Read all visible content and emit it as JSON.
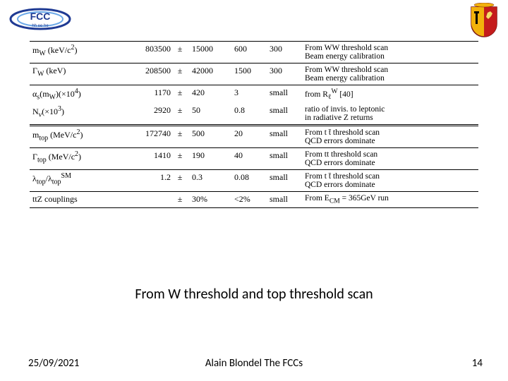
{
  "caption": "From W threshold and top threshold scan",
  "footer": {
    "date": "25/09/2021",
    "center": "Alain Blondel The FCCs",
    "page": "14"
  },
  "table": {
    "rows": [
      {
        "topcls": "sep",
        "obs_html": "m<sub>W</sub> (keV/c<sup>2</sup>)",
        "val": "803500",
        "pm": "±",
        "err": "15000",
        "c1": "600",
        "c2": "300",
        "method_html": "From WW threshold scan<br>Beam energy calibration"
      },
      {
        "topcls": "sep",
        "obs_html": "Γ<sub>W</sub> (keV)",
        "val": "208500",
        "pm": "±",
        "err": "42000",
        "c1": "1500",
        "c2": "300",
        "method_html": "From WW threshold scan<br>Beam energy calibration"
      },
      {
        "topcls": "sep",
        "obs_html": "α<sub>s</sub>(m<sub>W</sub>)(×10<sup>4</sup>)",
        "val": "1170",
        "pm": "±",
        "err": "420",
        "c1": "3",
        "c2": "small",
        "method_html": "from R<sub>ℓ</sub><sup>W</sup> [40]"
      },
      {
        "topcls": "",
        "obs_html": "N<sub>ν</sub>(×10<sup>3</sup>)",
        "val": "2920",
        "pm": "±",
        "err": "50",
        "c1": "0.8",
        "c2": "small",
        "method_html": "ratio of invis. to leptonic<br>in radiative Z returns"
      },
      {
        "topcls": "dbl2",
        "obs_html": "m<sub>top</sub> (MeV/c<sup>2</sup>)",
        "val": "172740",
        "pm": "±",
        "err": "500",
        "c1": "20",
        "c2": "small",
        "method_html": "From t t̄ threshold scan<br>QCD errors dominate"
      },
      {
        "topcls": "sep",
        "obs_html": "Γ<sub>top</sub> (MeV/c<sup>2</sup>)",
        "val": "1410",
        "pm": "±",
        "err": "190",
        "c1": "40",
        "c2": "small",
        "method_html": "From tt threshold scan<br>QCD errors dominate"
      },
      {
        "topcls": "sep",
        "obs_html": "λ<sub>top</sub>/λ<sub>top</sub><sup>SM</sup>",
        "val": "1.2",
        "pm": "±",
        "err": "0.3",
        "c1": "0.08",
        "c2": "small",
        "method_html": "From t t̄ threshold scan<br>QCD errors dominate"
      },
      {
        "topcls": "sep",
        "obs_html": "ttZ couplings",
        "val": "",
        "pm": "±",
        "err": "30%",
        "c1": "<2%",
        "c2": "small",
        "method_html": "From E<sub>CM</sub> = 365GeV run",
        "bottomcls": "sep"
      }
    ]
  }
}
